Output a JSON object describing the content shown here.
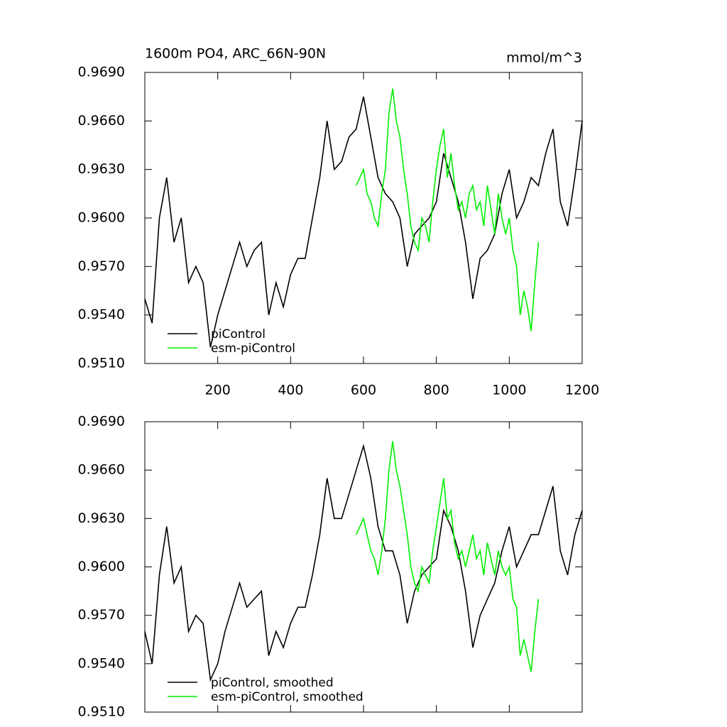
{
  "chart_data": [
    {
      "type": "line",
      "title": "1600m PO4, ARC_66N-90N",
      "units": "mmol/m^3",
      "xlim": [
        0,
        1200
      ],
      "xticks": [
        200,
        400,
        600,
        800,
        1000,
        1200
      ],
      "xtick_labels": true,
      "ylim": [
        0.951,
        0.969
      ],
      "yticks": [
        {
          "value": 0.951,
          "label": "0.9510"
        },
        {
          "value": 0.954,
          "label": "0.9540"
        },
        {
          "value": 0.957,
          "label": "0.9570"
        },
        {
          "value": 0.96,
          "label": "0.9600"
        },
        {
          "value": 0.963,
          "label": "0.9630"
        },
        {
          "value": 0.966,
          "label": "0.9660"
        },
        {
          "value": 0.969,
          "label": "0.9690"
        }
      ],
      "series": [
        {
          "name": "piControl",
          "color": "#000000",
          "x": [
            0,
            20,
            40,
            60,
            80,
            100,
            120,
            140,
            160,
            180,
            200,
            220,
            240,
            260,
            280,
            300,
            320,
            340,
            360,
            380,
            400,
            420,
            440,
            460,
            480,
            500,
            520,
            540,
            560,
            580,
            600,
            620,
            640,
            660,
            680,
            700,
            720,
            740,
            760,
            780,
            800,
            820,
            840,
            860,
            880,
            900,
            920,
            940,
            960,
            980,
            1000,
            1020,
            1040,
            1060,
            1080,
            1100,
            1120,
            1140,
            1160,
            1180,
            1200
          ],
          "values": [
            0.955,
            0.9535,
            0.96,
            0.9625,
            0.9585,
            0.96,
            0.956,
            0.957,
            0.956,
            0.952,
            0.954,
            0.9555,
            0.957,
            0.9585,
            0.957,
            0.958,
            0.9585,
            0.954,
            0.956,
            0.9545,
            0.9565,
            0.9575,
            0.9575,
            0.96,
            0.9625,
            0.966,
            0.963,
            0.9635,
            0.965,
            0.9655,
            0.9675,
            0.965,
            0.9625,
            0.9615,
            0.961,
            0.96,
            0.957,
            0.959,
            0.9595,
            0.96,
            0.961,
            0.964,
            0.9625,
            0.961,
            0.9585,
            0.955,
            0.9575,
            0.958,
            0.959,
            0.9615,
            0.963,
            0.96,
            0.961,
            0.9625,
            0.962,
            0.964,
            0.9655,
            0.961,
            0.9595,
            0.9625,
            0.966
          ]
        },
        {
          "name": "esm-piControl",
          "color": "#00ee00",
          "x": [
            580,
            590,
            600,
            610,
            620,
            630,
            640,
            650,
            660,
            670,
            680,
            690,
            700,
            710,
            720,
            730,
            740,
            750,
            760,
            770,
            780,
            790,
            800,
            810,
            820,
            830,
            840,
            850,
            860,
            870,
            880,
            890,
            900,
            910,
            920,
            930,
            940,
            950,
            960,
            970,
            980,
            990,
            1000,
            1010,
            1020,
            1030,
            1040,
            1050,
            1060,
            1070,
            1080
          ],
          "values": [
            0.962,
            0.9625,
            0.963,
            0.9615,
            0.961,
            0.96,
            0.9595,
            0.9615,
            0.963,
            0.9665,
            0.968,
            0.966,
            0.965,
            0.963,
            0.9615,
            0.9595,
            0.9585,
            0.958,
            0.96,
            0.9595,
            0.9585,
            0.961,
            0.963,
            0.9645,
            0.9655,
            0.9625,
            0.964,
            0.962,
            0.9605,
            0.961,
            0.96,
            0.9615,
            0.962,
            0.9605,
            0.961,
            0.9595,
            0.962,
            0.9605,
            0.959,
            0.9615,
            0.96,
            0.959,
            0.96,
            0.958,
            0.957,
            0.954,
            0.9555,
            0.9545,
            0.953,
            0.956,
            0.9585
          ]
        }
      ]
    },
    {
      "type": "line",
      "xlim": [
        0,
        1200
      ],
      "xticks": [
        200,
        400,
        600,
        800,
        1000,
        1200
      ],
      "xtick_labels": false,
      "ylim": [
        0.951,
        0.969
      ],
      "yticks": [
        {
          "value": 0.951,
          "label": "0.9510"
        },
        {
          "value": 0.954,
          "label": "0.9540"
        },
        {
          "value": 0.957,
          "label": "0.9570"
        },
        {
          "value": 0.96,
          "label": "0.9600"
        },
        {
          "value": 0.963,
          "label": "0.9630"
        },
        {
          "value": 0.966,
          "label": "0.9660"
        },
        {
          "value": 0.969,
          "label": "0.9690"
        }
      ],
      "series": [
        {
          "name": "piControl, smoothed",
          "color": "#000000",
          "x": [
            0,
            20,
            40,
            60,
            80,
            100,
            120,
            140,
            160,
            180,
            200,
            220,
            240,
            260,
            280,
            300,
            320,
            340,
            360,
            380,
            400,
            420,
            440,
            460,
            480,
            500,
            520,
            540,
            560,
            580,
            600,
            620,
            640,
            660,
            680,
            700,
            720,
            740,
            760,
            780,
            800,
            820,
            840,
            860,
            880,
            900,
            920,
            940,
            960,
            980,
            1000,
            1020,
            1040,
            1060,
            1080,
            1100,
            1120,
            1140,
            1160,
            1180,
            1200
          ],
          "values": [
            0.956,
            0.954,
            0.9595,
            0.9625,
            0.959,
            0.96,
            0.956,
            0.957,
            0.9565,
            0.953,
            0.954,
            0.956,
            0.9575,
            0.959,
            0.9575,
            0.958,
            0.9585,
            0.9545,
            0.956,
            0.955,
            0.9565,
            0.9575,
            0.9575,
            0.9595,
            0.962,
            0.9655,
            0.963,
            0.963,
            0.9645,
            0.966,
            0.9675,
            0.9655,
            0.9625,
            0.961,
            0.961,
            0.9595,
            0.9565,
            0.9585,
            0.9595,
            0.96,
            0.9605,
            0.9635,
            0.9625,
            0.961,
            0.9585,
            0.955,
            0.957,
            0.958,
            0.959,
            0.961,
            0.9625,
            0.96,
            0.961,
            0.962,
            0.962,
            0.9635,
            0.965,
            0.961,
            0.9595,
            0.962,
            0.9635
          ]
        },
        {
          "name": "esm-piControl, smoothed",
          "color": "#00ee00",
          "x": [
            580,
            590,
            600,
            610,
            620,
            630,
            640,
            650,
            660,
            670,
            680,
            690,
            700,
            710,
            720,
            730,
            740,
            750,
            760,
            770,
            780,
            790,
            800,
            810,
            820,
            830,
            840,
            850,
            860,
            870,
            880,
            890,
            900,
            910,
            920,
            930,
            940,
            950,
            960,
            970,
            980,
            990,
            1000,
            1010,
            1020,
            1030,
            1040,
            1050,
            1060,
            1070,
            1080
          ],
          "values": [
            0.962,
            0.9625,
            0.963,
            0.962,
            0.961,
            0.9605,
            0.9595,
            0.961,
            0.963,
            0.966,
            0.9678,
            0.966,
            0.965,
            0.9635,
            0.962,
            0.96,
            0.959,
            0.9585,
            0.96,
            0.9595,
            0.959,
            0.961,
            0.9625,
            0.964,
            0.9655,
            0.963,
            0.9635,
            0.9615,
            0.9605,
            0.961,
            0.96,
            0.961,
            0.962,
            0.9605,
            0.961,
            0.9595,
            0.9615,
            0.9605,
            0.9595,
            0.961,
            0.96,
            0.9595,
            0.96,
            0.958,
            0.9575,
            0.9545,
            0.9555,
            0.9545,
            0.9535,
            0.956,
            0.958
          ]
        }
      ]
    }
  ]
}
